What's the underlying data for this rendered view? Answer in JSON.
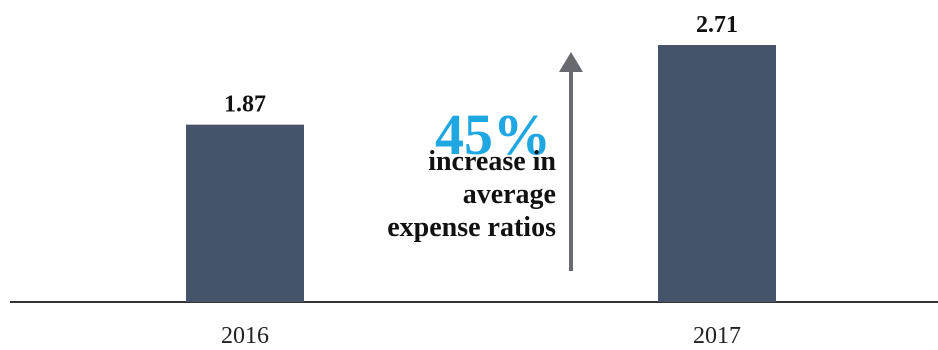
{
  "chart_data": {
    "type": "bar",
    "categories": [
      "2016",
      "2017"
    ],
    "values": [
      1.87,
      2.71
    ],
    "value_labels": [
      "1.87",
      "2.71"
    ],
    "ylim": [
      0,
      2.71
    ],
    "grid": false,
    "colors": {
      "bar": "#465469",
      "baseline": "#333333",
      "arrow": "#676b70",
      "highlight": "#1ea7e1"
    },
    "annotation": {
      "percent": "45%",
      "lines": [
        "increase in",
        "average",
        "expense ratios"
      ]
    }
  }
}
